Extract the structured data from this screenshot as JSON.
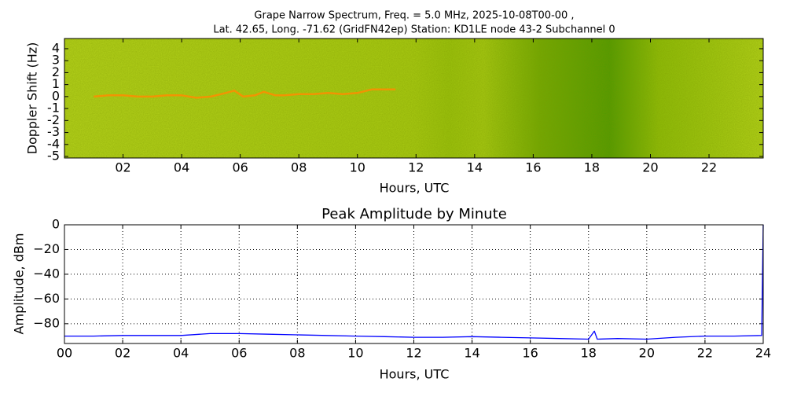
{
  "chart_data": [
    {
      "type": "spectrogram",
      "title": "Grape Narrow Spectrum, Freq. = 5.0 MHz, 2025-10-08T00-00 ,",
      "subtitle": "Lat.  42.65, Long. -71.62 (GridFN42ep) Station: KD1LE node 43-2 Subchannel 0",
      "xlabel": "Hours, UTC",
      "ylabel": "Doppler Shift (Hz)",
      "xlim": [
        0,
        23.85
      ],
      "ylim": [
        -5.13,
        4.85
      ],
      "xticks": [
        {
          "value": 2,
          "label": "02"
        },
        {
          "value": 4,
          "label": "04"
        },
        {
          "value": 6,
          "label": "06"
        },
        {
          "value": 8,
          "label": "08"
        },
        10,
        12,
        14,
        16,
        18,
        20,
        22
      ],
      "yticks": [
        -5,
        -4,
        -3,
        -2,
        -1,
        0,
        1,
        2,
        3,
        4
      ],
      "x": [
        1,
        1.5,
        2,
        2.5,
        3,
        3.5,
        4,
        4.5,
        5,
        5.5,
        5.8,
        6.1,
        6.5,
        6.8,
        7.2,
        7.5,
        8,
        8.5,
        9,
        9.5,
        10,
        10.5,
        11,
        11.3
      ],
      "values": [
        0,
        0.1,
        0.1,
        0,
        0,
        0.1,
        0.1,
        -0.1,
        0,
        0.3,
        0.5,
        0,
        0.1,
        0.4,
        0.1,
        0.1,
        0.2,
        0.2,
        0.3,
        0.2,
        0.3,
        0.6,
        0.6,
        0.6
      ],
      "color": "#ff8c00",
      "grid": false
    },
    {
      "type": "line",
      "title": "Peak Amplitude by Minute",
      "xlabel": "Hours, UTC",
      "ylabel": "Amplitude, dBm",
      "xlim": [
        0,
        24
      ],
      "ylim": [
        -96,
        0
      ],
      "xticks": [
        {
          "value": 0,
          "label": "00"
        },
        {
          "value": 2,
          "label": "02"
        },
        {
          "value": 4,
          "label": "04"
        },
        {
          "value": 6,
          "label": "06"
        },
        {
          "value": 8,
          "label": "08"
        },
        10,
        12,
        14,
        16,
        18,
        20,
        22,
        24
      ],
      "yticks": [
        0,
        {
          "value": -20,
          "label": "−20"
        },
        {
          "value": -40,
          "label": "−40"
        },
        {
          "value": -60,
          "label": "−60"
        },
        {
          "value": -80,
          "label": "−80"
        }
      ],
      "x": [
        0,
        1,
        2,
        3,
        4,
        5,
        6,
        7,
        8,
        9,
        10,
        11,
        12,
        13,
        14,
        15,
        16,
        17,
        18,
        18.2,
        18.3,
        19,
        20,
        21,
        22,
        23,
        23.95,
        24
      ],
      "values": [
        -90,
        -90,
        -89.5,
        -89.5,
        -89.5,
        -88,
        -88,
        -88.5,
        -89,
        -89.5,
        -90,
        -90.5,
        -91,
        -91,
        -90.5,
        -91,
        -91.5,
        -92,
        -92.5,
        -86,
        -92.5,
        -92,
        -92.5,
        -91,
        -90,
        -90,
        -89.5,
        0
      ],
      "color": "#0000ff",
      "grid": true
    }
  ]
}
